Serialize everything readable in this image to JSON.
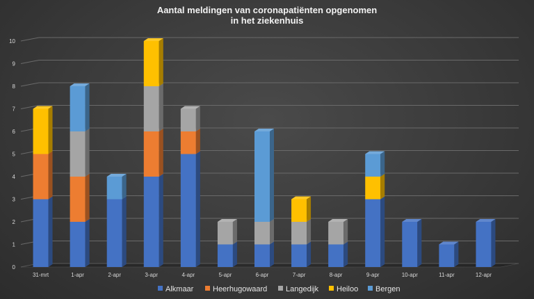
{
  "chart_data": {
    "type": "bar",
    "stacked": true,
    "title_lines": [
      "Aantal meldingen van coronapatiënten opgenomen",
      "in het ziekenhuis"
    ],
    "categories": [
      "31-mrt",
      "1-apr",
      "2-apr",
      "3-apr",
      "4-apr",
      "5-apr",
      "6-apr",
      "7-apr",
      "8-apr",
      "9-apr",
      "10-apr",
      "11-apr",
      "12-apr"
    ],
    "ylim": [
      0,
      10
    ],
    "yticks": [
      0,
      1,
      2,
      3,
      4,
      5,
      6,
      7,
      8,
      9,
      10
    ],
    "grid": true,
    "legend_position": "bottom",
    "series": [
      {
        "name": "Alkmaar",
        "color": "#4472c4",
        "values": [
          3,
          2,
          3,
          4,
          5,
          1,
          1,
          1,
          1,
          3,
          2,
          1,
          2
        ]
      },
      {
        "name": "Heerhugowaard",
        "color": "#ed7d31",
        "values": [
          2,
          2,
          0,
          2,
          1,
          0,
          0,
          0,
          0,
          0,
          0,
          0,
          0
        ]
      },
      {
        "name": "Langedijk",
        "color": "#a5a5a5",
        "values": [
          0,
          2,
          0,
          2,
          1,
          1,
          1,
          1,
          1,
          0,
          0,
          0,
          0
        ]
      },
      {
        "name": "Heiloo",
        "color": "#ffc000",
        "values": [
          2,
          0,
          0,
          2,
          0,
          0,
          0,
          1,
          0,
          1,
          0,
          0,
          0
        ]
      },
      {
        "name": "Bergen",
        "color": "#5b9bd5",
        "values": [
          0,
          2,
          1,
          0,
          0,
          0,
          4,
          0,
          0,
          1,
          0,
          0,
          0
        ]
      }
    ]
  }
}
